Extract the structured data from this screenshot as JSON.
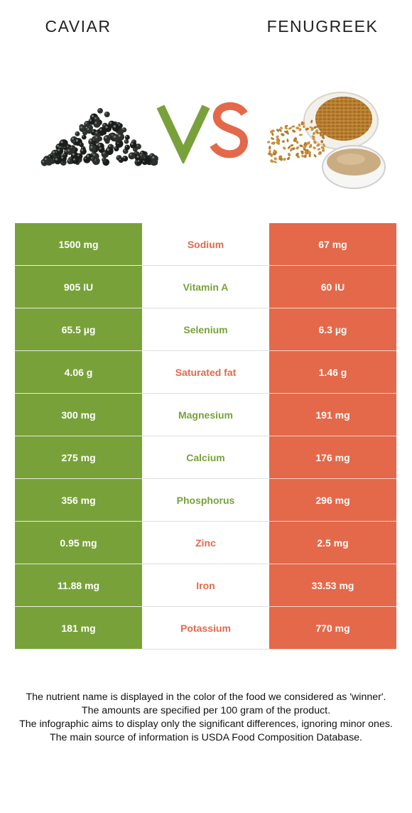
{
  "header": {
    "left_title": "CAVIAR",
    "right_title": "FENUGREEK",
    "vs_text": "VS"
  },
  "colors": {
    "left_brand": "#79a13a",
    "right_brand": "#e3694a"
  },
  "icons": {
    "left_image": "caviar-pile-image",
    "right_image": "fenugreek-seeds-image"
  },
  "rows": [
    {
      "left": "1500 mg",
      "nutrient": "Sodium",
      "right": "67 mg",
      "winner": "right"
    },
    {
      "left": "905 IU",
      "nutrient": "Vitamin A",
      "right": "60 IU",
      "winner": "left"
    },
    {
      "left": "65.5 µg",
      "nutrient": "Selenium",
      "right": "6.3 µg",
      "winner": "left"
    },
    {
      "left": "4.06 g",
      "nutrient": "Saturated fat",
      "right": "1.46 g",
      "winner": "right"
    },
    {
      "left": "300 mg",
      "nutrient": "Magnesium",
      "right": "191 mg",
      "winner": "left"
    },
    {
      "left": "275 mg",
      "nutrient": "Calcium",
      "right": "176 mg",
      "winner": "left"
    },
    {
      "left": "356 mg",
      "nutrient": "Phosphorus",
      "right": "296 mg",
      "winner": "left"
    },
    {
      "left": "0.95 mg",
      "nutrient": "Zinc",
      "right": "2.5 mg",
      "winner": "right"
    },
    {
      "left": "11.88 mg",
      "nutrient": "Iron",
      "right": "33.53 mg",
      "winner": "right"
    },
    {
      "left": "181 mg",
      "nutrient": "Potassium",
      "right": "770 mg",
      "winner": "right"
    }
  ],
  "footer": {
    "line1": "The nutrient name is displayed in the color of the food we considered as 'winner'.",
    "line2": "The amounts are specified per 100 gram of the product.",
    "line3": "The infographic aims to display only the significant differences, ignoring minor ones.",
    "line4": "The main source of information is USDA Food Composition Database."
  }
}
